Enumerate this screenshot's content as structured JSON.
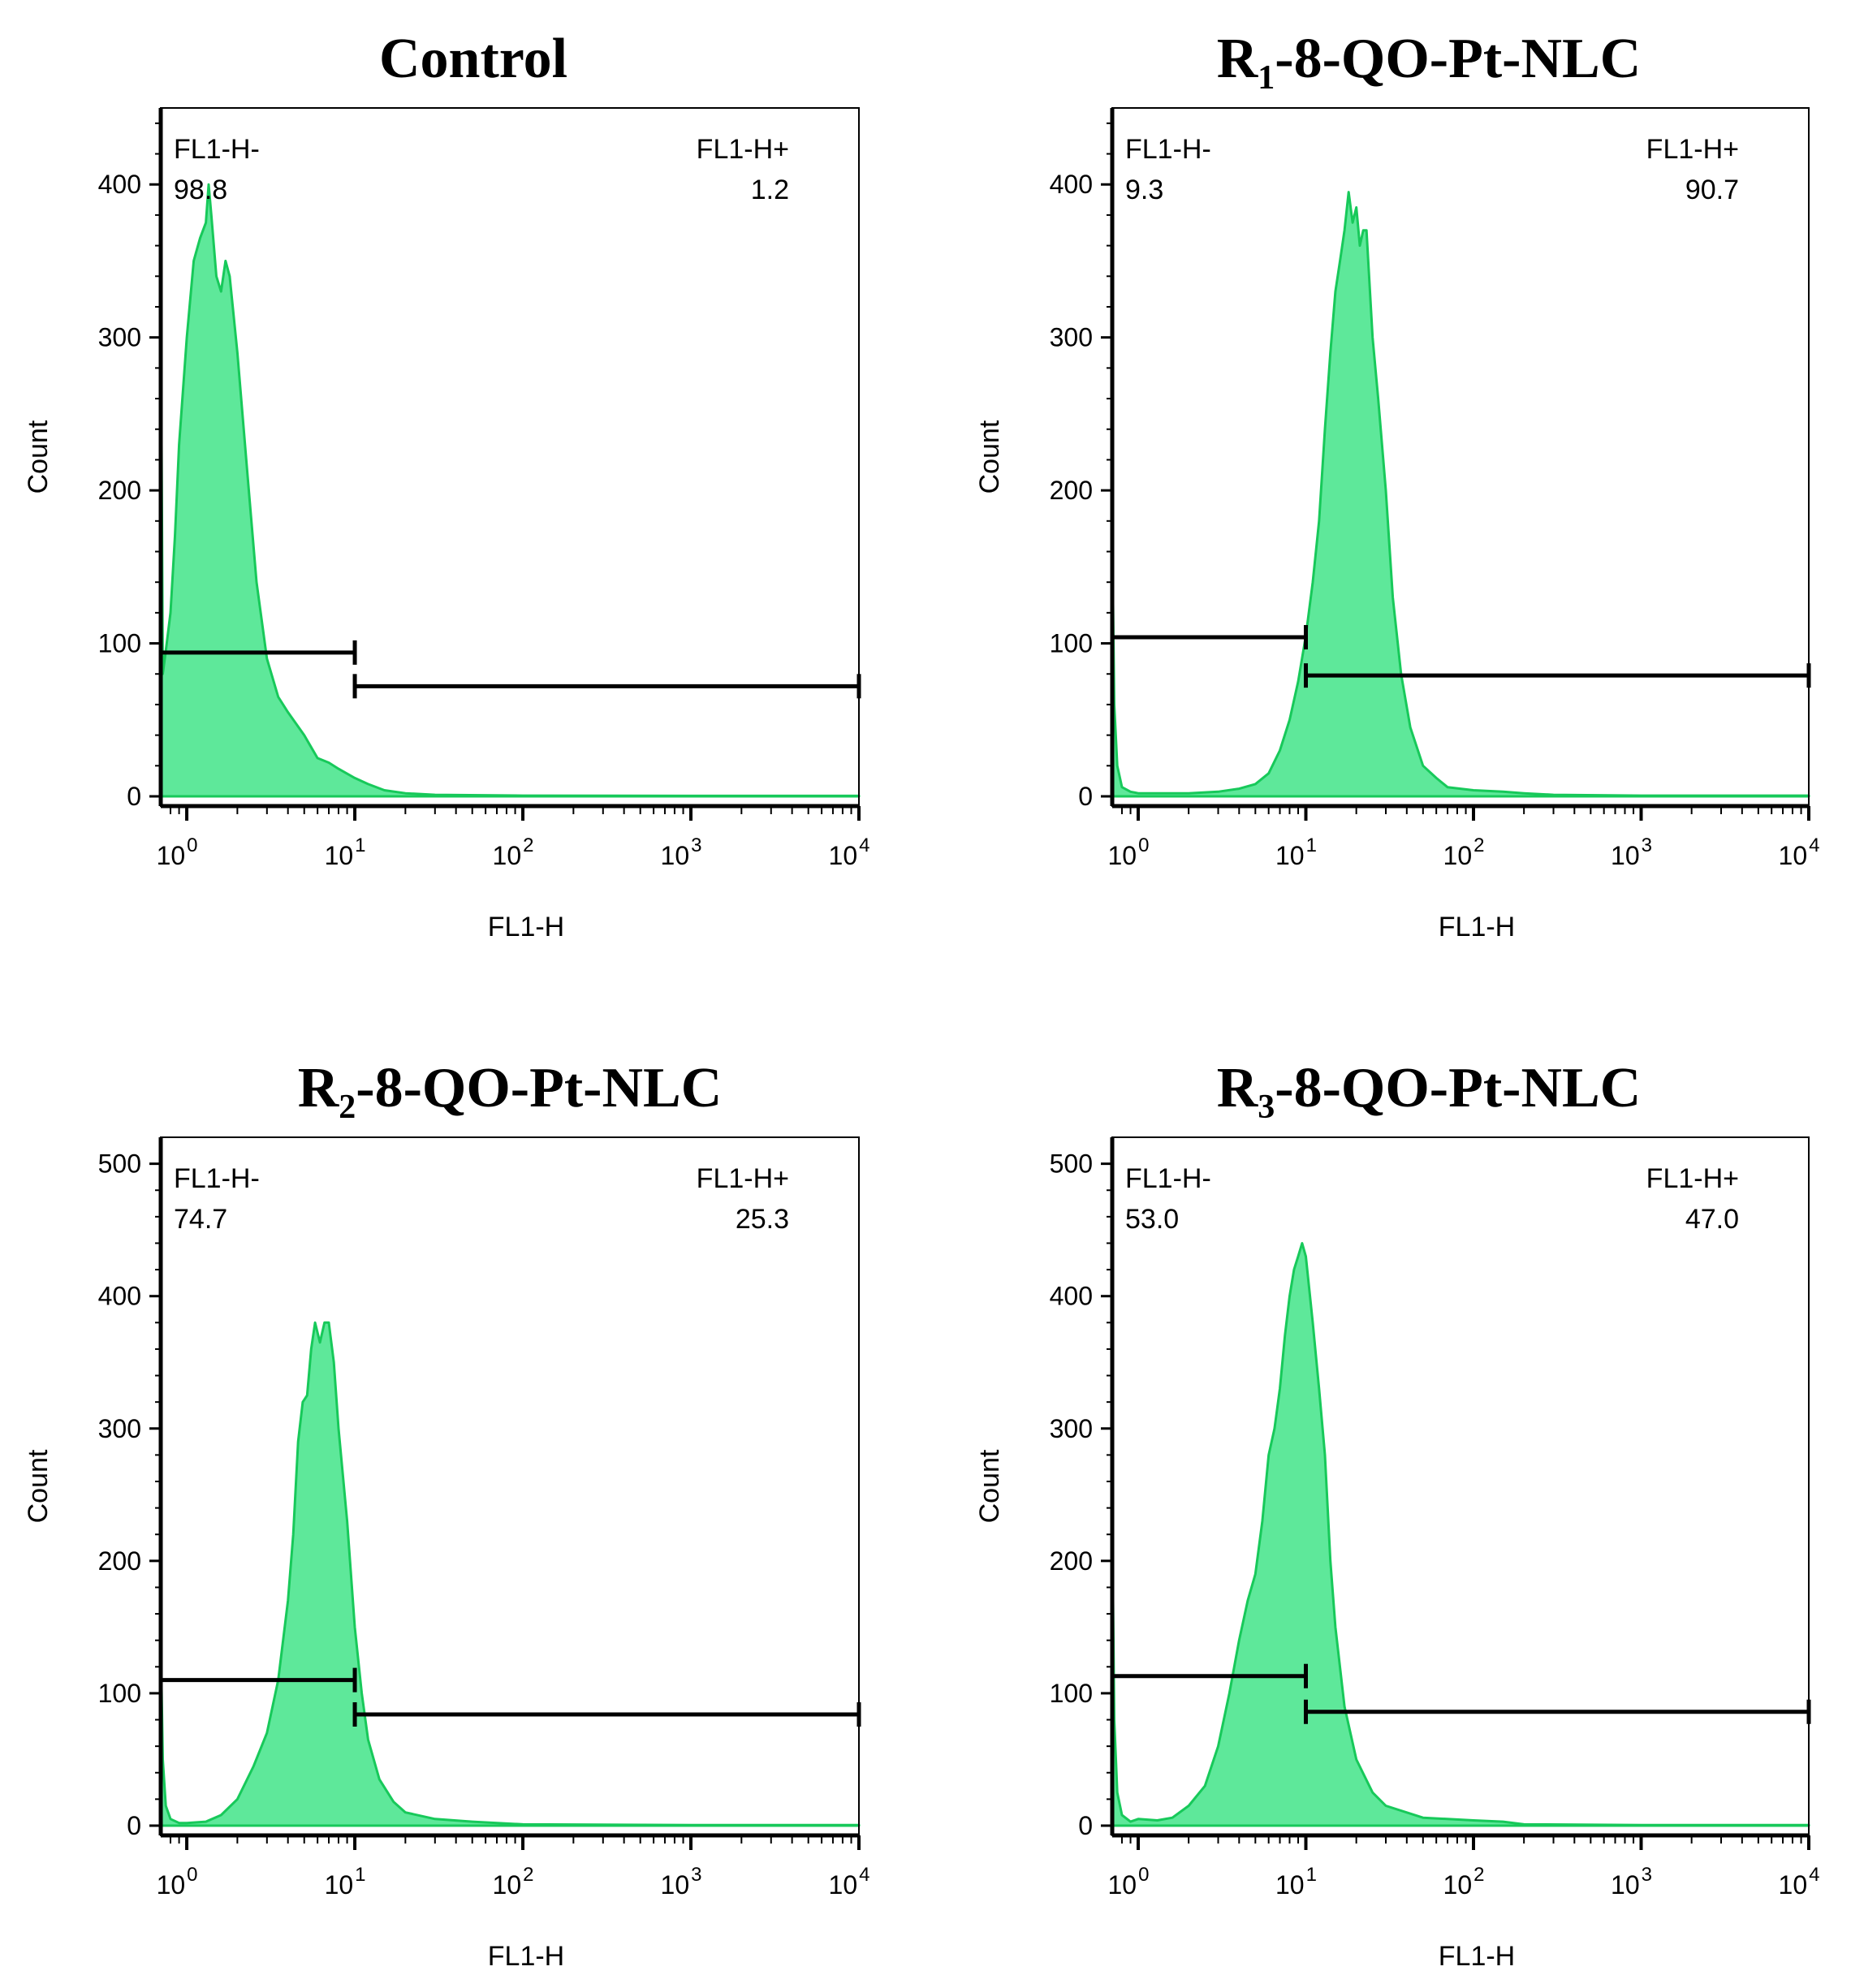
{
  "colors": {
    "fill": "#5ee89a",
    "stroke": "#17c95a",
    "gate": "#000000",
    "axis": "#000000"
  },
  "chart_data": [
    {
      "type": "histogram",
      "title": "Control",
      "title_main": "Control",
      "title_sub": "",
      "title_rest": "",
      "xlabel": "FL1-H",
      "ylabel": "Count",
      "xscale": "log",
      "xlim": [
        0.7,
        10000
      ],
      "ylim": [
        0,
        450
      ],
      "yticks": [
        0,
        100,
        200,
        300,
        400
      ],
      "xticks": [
        {
          "value": 1,
          "base": "10",
          "exp": "0"
        },
        {
          "value": 10,
          "base": "10",
          "exp": "1"
        },
        {
          "value": 100,
          "base": "10",
          "exp": "2"
        },
        {
          "value": 1000,
          "base": "10",
          "exp": "3"
        },
        {
          "value": 10000,
          "base": "10",
          "exp": "4"
        }
      ],
      "gates": [
        {
          "label": "FL1-H-",
          "value": "98.8",
          "from": 0.7,
          "to": 10,
          "y": 94
        },
        {
          "label": "FL1-H+",
          "value": "1.2",
          "from": 10,
          "to": 10000,
          "y": 72
        }
      ],
      "histogram": [
        [
          0.7,
          330
        ],
        [
          0.72,
          80
        ],
        [
          0.75,
          95
        ],
        [
          0.8,
          120
        ],
        [
          0.85,
          170
        ],
        [
          0.9,
          230
        ],
        [
          1.0,
          300
        ],
        [
          1.1,
          350
        ],
        [
          1.2,
          365
        ],
        [
          1.3,
          375
        ],
        [
          1.35,
          400
        ],
        [
          1.4,
          380
        ],
        [
          1.5,
          340
        ],
        [
          1.6,
          330
        ],
        [
          1.7,
          350
        ],
        [
          1.8,
          340
        ],
        [
          2.0,
          290
        ],
        [
          2.3,
          210
        ],
        [
          2.6,
          140
        ],
        [
          3.0,
          90
        ],
        [
          3.5,
          65
        ],
        [
          4.0,
          55
        ],
        [
          5.0,
          40
        ],
        [
          6.0,
          25
        ],
        [
          7.0,
          22
        ],
        [
          8.0,
          18
        ],
        [
          10.0,
          12
        ],
        [
          12.0,
          8
        ],
        [
          15.0,
          4
        ],
        [
          20.0,
          2
        ],
        [
          30.0,
          1
        ],
        [
          100,
          0.5
        ],
        [
          1000,
          0.3
        ],
        [
          10000,
          0.3
        ]
      ]
    },
    {
      "type": "histogram",
      "title": "R1-8-QO-Pt-NLC",
      "title_main": "R",
      "title_sub": "1",
      "title_rest": "-8-QO-Pt-NLC",
      "xlabel": "FL1-H",
      "ylabel": "Count",
      "xscale": "log",
      "xlim": [
        0.7,
        10000
      ],
      "ylim": [
        0,
        450
      ],
      "yticks": [
        0,
        100,
        200,
        300,
        400
      ],
      "xticks": [
        {
          "value": 1,
          "base": "10",
          "exp": "0"
        },
        {
          "value": 10,
          "base": "10",
          "exp": "1"
        },
        {
          "value": 100,
          "base": "10",
          "exp": "2"
        },
        {
          "value": 1000,
          "base": "10",
          "exp": "3"
        },
        {
          "value": 10000,
          "base": "10",
          "exp": "4"
        }
      ],
      "gates": [
        {
          "label": "FL1-H-",
          "value": "9.3",
          "from": 0.7,
          "to": 10,
          "y": 104
        },
        {
          "label": "FL1-H+",
          "value": "90.7",
          "from": 10,
          "to": 10000,
          "y": 79
        }
      ],
      "histogram": [
        [
          0.7,
          170
        ],
        [
          0.72,
          60
        ],
        [
          0.75,
          20
        ],
        [
          0.8,
          6
        ],
        [
          0.9,
          3
        ],
        [
          1.0,
          2
        ],
        [
          2.0,
          2
        ],
        [
          3.0,
          3
        ],
        [
          4.0,
          5
        ],
        [
          5.0,
          8
        ],
        [
          6.0,
          15
        ],
        [
          7.0,
          30
        ],
        [
          8.0,
          50
        ],
        [
          9.0,
          75
        ],
        [
          10.0,
          105
        ],
        [
          11.0,
          140
        ],
        [
          12.0,
          180
        ],
        [
          13.0,
          240
        ],
        [
          14.0,
          290
        ],
        [
          15.0,
          330
        ],
        [
          16.0,
          350
        ],
        [
          17.0,
          370
        ],
        [
          18.0,
          395
        ],
        [
          19.0,
          375
        ],
        [
          20.0,
          385
        ],
        [
          21.0,
          360
        ],
        [
          22.0,
          370
        ],
        [
          23.0,
          370
        ],
        [
          25.0,
          300
        ],
        [
          27.0,
          260
        ],
        [
          30.0,
          200
        ],
        [
          33.0,
          130
        ],
        [
          37.0,
          80
        ],
        [
          42.0,
          45
        ],
        [
          50.0,
          20
        ],
        [
          60.0,
          12
        ],
        [
          70.0,
          6
        ],
        [
          100.0,
          4
        ],
        [
          150.0,
          3
        ],
        [
          200.0,
          2
        ],
        [
          300.0,
          1
        ],
        [
          1000.0,
          0.5
        ],
        [
          10000.0,
          0.5
        ]
      ]
    },
    {
      "type": "histogram",
      "title": "R2-8-QO-Pt-NLC",
      "title_main": "R",
      "title_sub": "2",
      "title_rest": "-8-QO-Pt-NLC",
      "xlabel": "FL1-H",
      "ylabel": "Count",
      "xscale": "log",
      "xlim": [
        0.7,
        10000
      ],
      "ylim": [
        0,
        520
      ],
      "yticks": [
        0,
        100,
        200,
        300,
        400,
        500
      ],
      "xticks": [
        {
          "value": 1,
          "base": "10",
          "exp": "0"
        },
        {
          "value": 10,
          "base": "10",
          "exp": "1"
        },
        {
          "value": 100,
          "base": "10",
          "exp": "2"
        },
        {
          "value": 1000,
          "base": "10",
          "exp": "3"
        },
        {
          "value": 10000,
          "base": "10",
          "exp": "4"
        }
      ],
      "gates": [
        {
          "label": "FL1-H-",
          "value": "74.7",
          "from": 0.7,
          "to": 10,
          "y": 110
        },
        {
          "label": "FL1-H+",
          "value": "25.3",
          "from": 10,
          "to": 10000,
          "y": 84
        }
      ],
      "histogram": [
        [
          0.7,
          140
        ],
        [
          0.72,
          50
        ],
        [
          0.75,
          15
        ],
        [
          0.8,
          5
        ],
        [
          0.9,
          2
        ],
        [
          1.0,
          2
        ],
        [
          1.3,
          3
        ],
        [
          1.6,
          8
        ],
        [
          2.0,
          20
        ],
        [
          2.5,
          45
        ],
        [
          3.0,
          70
        ],
        [
          3.5,
          110
        ],
        [
          4.0,
          170
        ],
        [
          4.3,
          220
        ],
        [
          4.6,
          290
        ],
        [
          4.9,
          320
        ],
        [
          5.2,
          325
        ],
        [
          5.5,
          360
        ],
        [
          5.8,
          380
        ],
        [
          6.2,
          365
        ],
        [
          6.6,
          380
        ],
        [
          7.0,
          380
        ],
        [
          7.5,
          350
        ],
        [
          8.0,
          300
        ],
        [
          9.0,
          230
        ],
        [
          10.0,
          150
        ],
        [
          11.0,
          100
        ],
        [
          12.0,
          65
        ],
        [
          14.0,
          35
        ],
        [
          17.0,
          18
        ],
        [
          20.0,
          10
        ],
        [
          30.0,
          5
        ],
        [
          50.0,
          3
        ],
        [
          100.0,
          1
        ],
        [
          1000.0,
          0.5
        ],
        [
          10000.0,
          0.5
        ]
      ]
    },
    {
      "type": "histogram",
      "title": "R3-8-QO-Pt-NLC",
      "title_main": "R",
      "title_sub": "3",
      "title_rest": "-8-QO-Pt-NLC",
      "xlabel": "FL1-H",
      "ylabel": "Count",
      "xscale": "log",
      "xlim": [
        0.7,
        10000
      ],
      "ylim": [
        0,
        520
      ],
      "yticks": [
        0,
        100,
        200,
        300,
        400,
        500
      ],
      "xticks": [
        {
          "value": 1,
          "base": "10",
          "exp": "0"
        },
        {
          "value": 10,
          "base": "10",
          "exp": "1"
        },
        {
          "value": 100,
          "base": "10",
          "exp": "2"
        },
        {
          "value": 1000,
          "base": "10",
          "exp": "3"
        },
        {
          "value": 10000,
          "base": "10",
          "exp": "4"
        }
      ],
      "gates": [
        {
          "label": "FL1-H-",
          "value": "53.0",
          "from": 0.7,
          "to": 10,
          "y": 113
        },
        {
          "label": "FL1-H+",
          "value": "47.0",
          "from": 10,
          "to": 10000,
          "y": 86
        }
      ],
      "histogram": [
        [
          0.7,
          230
        ],
        [
          0.72,
          80
        ],
        [
          0.75,
          25
        ],
        [
          0.8,
          8
        ],
        [
          0.9,
          3
        ],
        [
          1.0,
          5
        ],
        [
          1.3,
          4
        ],
        [
          1.6,
          6
        ],
        [
          2.0,
          15
        ],
        [
          2.5,
          30
        ],
        [
          3.0,
          60
        ],
        [
          3.5,
          100
        ],
        [
          4.0,
          140
        ],
        [
          4.5,
          170
        ],
        [
          5.0,
          190
        ],
        [
          5.5,
          230
        ],
        [
          6.0,
          280
        ],
        [
          6.5,
          300
        ],
        [
          7.0,
          330
        ],
        [
          7.5,
          370
        ],
        [
          8.0,
          400
        ],
        [
          8.5,
          420
        ],
        [
          9.0,
          430
        ],
        [
          9.5,
          440
        ],
        [
          10.0,
          430
        ],
        [
          11.0,
          380
        ],
        [
          12.0,
          330
        ],
        [
          13.0,
          280
        ],
        [
          14.0,
          200
        ],
        [
          15.0,
          150
        ],
        [
          17.0,
          90
        ],
        [
          20.0,
          50
        ],
        [
          25.0,
          25
        ],
        [
          30.0,
          15
        ],
        [
          50.0,
          6
        ],
        [
          100.0,
          4
        ],
        [
          150.0,
          3
        ],
        [
          200.0,
          1
        ],
        [
          1000.0,
          0.5
        ],
        [
          10000.0,
          0.5
        ]
      ]
    }
  ]
}
